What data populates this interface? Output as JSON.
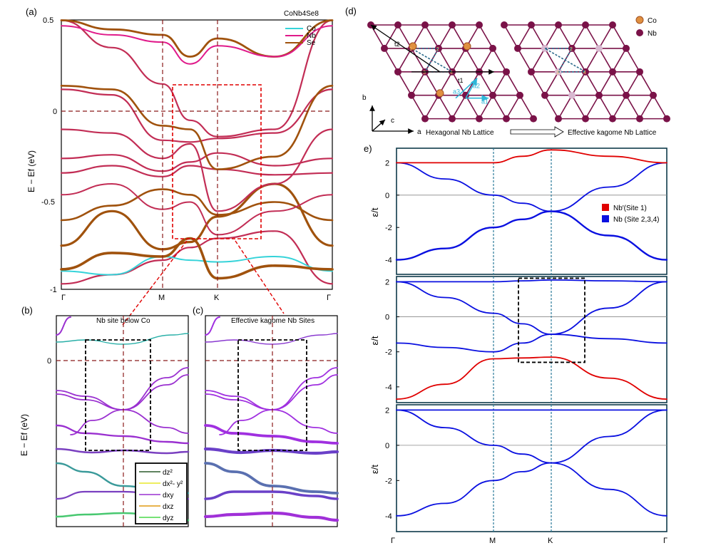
{
  "colors": {
    "co": "#35d3d9",
    "nb": "#e01a8a",
    "se": "#a0520d",
    "band_main": "#c22d55",
    "dashed": "#8b1a1a",
    "red_box": "#e00000",
    "nb_atom": "#7a1248",
    "co_atom": "#e09040",
    "lattice_line": "#7a1248",
    "arrow_blue": "#2eb6d8",
    "kagome_red": "#e00000",
    "kagome_blue": "#0a10e0",
    "frame_e": "#0e3a4a",
    "vline_e": "#2a7a9a"
  },
  "panel_a": {
    "label": "(a)",
    "title": "CoNb4Se8",
    "ylabel": "E − Ef (eV)",
    "ytick_labels": [
      "0.5",
      "0",
      "-0.5",
      "-1"
    ],
    "xtick_labels": [
      "Γ",
      "M",
      "K",
      "Γ"
    ],
    "legend": [
      "Co",
      "Nb",
      "Se"
    ]
  },
  "panel_b": {
    "label": "(b)",
    "title": "Nb site below Co",
    "ylabel": "E − Ef (eV)",
    "ytick_labels": [
      "0"
    ],
    "legend": [
      "dz²",
      "dx²- y²",
      "dxy",
      "dxz",
      "dyz"
    ],
    "legend_colors": [
      "#2a5a2a",
      "#e8e82a",
      "#9a30d0",
      "#e09a10",
      "#48d848"
    ]
  },
  "panel_c": {
    "label": "(c)",
    "title": "Effective kagome Nb Sites"
  },
  "panel_d": {
    "label": "(d)",
    "legend": [
      "Co",
      "Nb"
    ],
    "site_labels": [
      "1",
      "2",
      "3",
      "4"
    ],
    "vector_labels": [
      "t1",
      "t2",
      "a1",
      "a2",
      "a3"
    ],
    "axes": [
      "a",
      "b",
      "c"
    ],
    "caption_left": "Hexagonal Nb Lattice",
    "caption_right": "Effective kagome Nb Lattice"
  },
  "panel_e": {
    "label": "e)",
    "ylabel": "ε/t",
    "legend": [
      "Nb′(Site 1)",
      "Nb (Site 2,3,4)"
    ],
    "xtick_labels": [
      "Γ",
      "M",
      "K",
      "Γ"
    ],
    "ytick_labels": [
      "2",
      "0",
      "-2",
      "-4"
    ]
  },
  "chart_data": [
    {
      "type": "line",
      "title": "CoNb4Se8",
      "ylabel": "E − Ef (eV)",
      "xlabel": "",
      "x_categories": [
        "Γ",
        "M",
        "K",
        "Γ"
      ],
      "ylim": [
        -1,
        0.5
      ],
      "series": [
        {
          "name": "Co"
        },
        {
          "name": "Nb"
        },
        {
          "name": "Se"
        }
      ]
    },
    {
      "type": "line",
      "title": "Nb site below Co",
      "ylabel": "E − Ef (eV)",
      "series": [
        {
          "name": "dz²"
        },
        {
          "name": "dx²- y²"
        },
        {
          "name": "dxy"
        },
        {
          "name": "dxz"
        },
        {
          "name": "dyz"
        }
      ]
    },
    {
      "type": "line",
      "title": "Effective kagome Nb Sites"
    },
    {
      "type": "line",
      "ylabel": "ε/t",
      "x_categories": [
        "Γ",
        "M",
        "K",
        "Γ"
      ],
      "ylim": [
        -4.9,
        2.8
      ],
      "series": [
        {
          "name": "Nb′(Site 1)"
        },
        {
          "name": "Nb (Site 2,3,4)"
        }
      ],
      "kagome_bands": {
        "gamma": [
          -4,
          2,
          2
        ],
        "M": [
          -2,
          0,
          2
        ],
        "K": [
          -1,
          -1,
          2.8
        ]
      }
    },
    {
      "type": "line",
      "ylabel": "ε/t",
      "x_categories": [
        "Γ",
        "M",
        "K",
        "Γ"
      ],
      "ylim": [
        -4.9,
        2.3
      ],
      "bands": {
        "gamma": [
          -4.7,
          -1.5,
          2,
          2
        ],
        "M": [
          -2.4,
          -2,
          0.2,
          2
        ],
        "K": [
          -2.3,
          -1,
          -1,
          2.1
        ]
      }
    },
    {
      "type": "line",
      "ylabel": "ε/t",
      "x_categories": [
        "Γ",
        "M",
        "K",
        "Γ"
      ],
      "ylim": [
        -4.9,
        2.3
      ],
      "bands": {
        "gamma": [
          -4,
          2,
          2
        ],
        "M": [
          -2,
          0,
          2
        ],
        "K": [
          -1,
          -1,
          2
        ]
      }
    }
  ]
}
